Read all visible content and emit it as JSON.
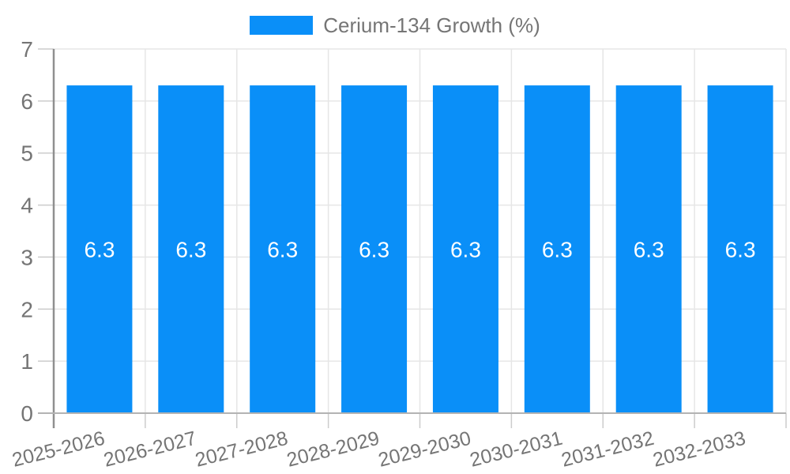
{
  "chart_data": {
    "type": "bar",
    "title": "",
    "legend_label": "Cerium-134 Growth (%)",
    "legend_position": "top",
    "categories": [
      "2025-2026",
      "2026-2027",
      "2027-2028",
      "2028-2029",
      "2029-2030",
      "2030-2031",
      "2031-2032",
      "2032-2033"
    ],
    "values": [
      6.3,
      6.3,
      6.3,
      6.3,
      6.3,
      6.3,
      6.3,
      6.3
    ],
    "bar_labels": [
      "6.3",
      "6.3",
      "6.3",
      "6.3",
      "6.3",
      "6.3",
      "6.3",
      "6.3"
    ],
    "xlabel": "",
    "ylabel": "",
    "ylim": [
      0,
      7
    ],
    "yticks": [
      0,
      1,
      2,
      3,
      4,
      5,
      6,
      7
    ],
    "grid": true,
    "x_label_rotation_deg": -14,
    "colors": {
      "bar": "#0a8ff8",
      "bar_label": "#ffffff",
      "axis_text": "#757575",
      "gridline": "#e6e6e6",
      "tick": "#cccccc",
      "baseline": "#b3b3b3",
      "y_axis_line": "#8f8f8f",
      "background": "#ffffff"
    }
  }
}
